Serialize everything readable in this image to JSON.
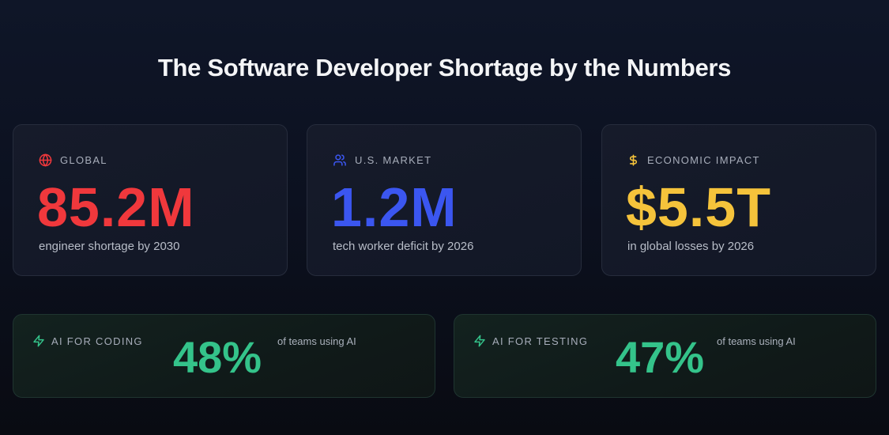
{
  "title": "The Software Developer Shortage by the Numbers",
  "colors": {
    "red": "#f0383c",
    "blue": "#3b56f0",
    "yellow": "#f5c33b",
    "green": "#34c38a"
  },
  "stats": [
    {
      "icon": "globe-icon",
      "label": "GLOBAL",
      "value": "85.2M",
      "caption": "engineer shortage by 2030"
    },
    {
      "icon": "users-icon",
      "label": "U.S. MARKET",
      "value": "1.2M",
      "caption": "tech worker deficit by 2026"
    },
    {
      "icon": "dollar-icon",
      "label": "ECONOMIC IMPACT",
      "value": "$5.5T",
      "caption": "in global losses by 2026"
    }
  ],
  "ai": [
    {
      "icon": "lightning-icon",
      "label": "AI FOR CODING",
      "value": "48%",
      "caption": "of teams using AI"
    },
    {
      "icon": "lightning-icon",
      "label": "AI FOR TESTING",
      "value": "47%",
      "caption": "of teams using AI"
    }
  ]
}
